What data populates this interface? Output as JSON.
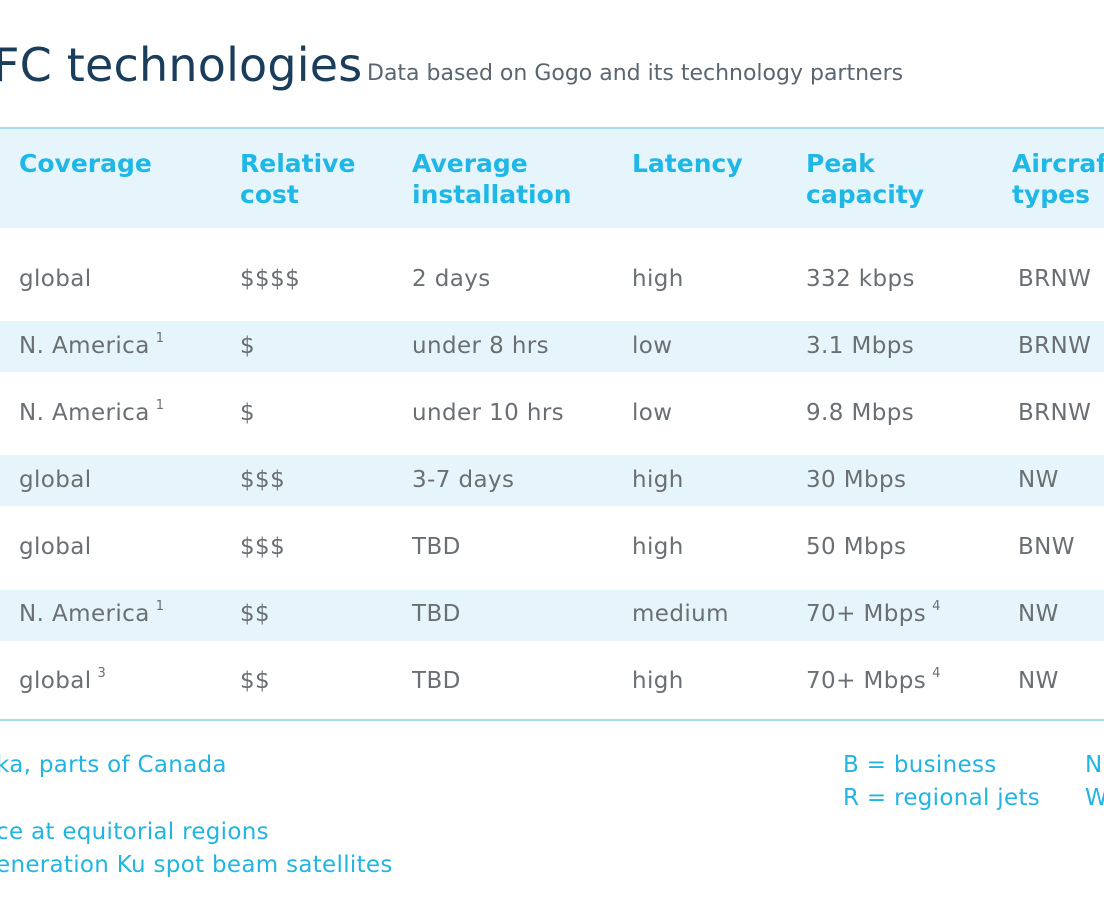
{
  "title": "FC technologies",
  "subtitle": "Data based on Gogo and its technology partners",
  "table": {
    "columns": [
      {
        "line1": "Coverage",
        "line2": ""
      },
      {
        "line1": "Relative",
        "line2": "cost"
      },
      {
        "line1": "Average",
        "line2": "installation"
      },
      {
        "line1": "Latency",
        "line2": ""
      },
      {
        "line1": "Peak",
        "line2": "capacity"
      },
      {
        "line1": "Aircraft",
        "line2": "types"
      }
    ],
    "rows": [
      {
        "coverage": "global",
        "coverage_note": "",
        "cost": "$$$$",
        "installation": "2 days",
        "latency": "high",
        "capacity": "332 kbps",
        "capacity_note": "",
        "aircraft": "BRNW"
      },
      {
        "coverage": "N. America",
        "coverage_note": "1",
        "cost": "$",
        "installation": "under 8 hrs",
        "latency": "low",
        "capacity": "3.1 Mbps",
        "capacity_note": "",
        "aircraft": "BRNW"
      },
      {
        "coverage": "N. America",
        "coverage_note": "1",
        "cost": "$",
        "installation": "under 10 hrs",
        "latency": "low",
        "capacity": "9.8 Mbps",
        "capacity_note": "",
        "aircraft": "BRNW"
      },
      {
        "coverage": "global",
        "coverage_note": "",
        "cost": "$$$",
        "installation": "3-7 days",
        "latency": "high",
        "capacity": "30 Mbps",
        "capacity_note": "",
        "aircraft": "NW"
      },
      {
        "coverage": "global",
        "coverage_note": "",
        "cost": "$$$",
        "installation": "TBD",
        "latency": "high",
        "capacity": "50 Mbps",
        "capacity_note": "",
        "aircraft": "BNW"
      },
      {
        "coverage": "N. America",
        "coverage_note": "1",
        "cost": "$$",
        "installation": "TBD",
        "latency": "medium",
        "capacity": "70+ Mbps",
        "capacity_note": "4",
        "aircraft": "NW"
      },
      {
        "coverage": "global",
        "coverage_note": "3",
        "cost": "$$",
        "installation": "TBD",
        "latency": "high",
        "capacity": "70+ Mbps",
        "capacity_note": "4",
        "aircraft": "NW"
      }
    ]
  },
  "footnotes": {
    "note1": "ka, parts of Canada",
    "note3": "ce at equitorial regions",
    "note4": "eneration Ku spot beam satellites"
  },
  "legend": {
    "b": "B = business",
    "r": "R = regional jets",
    "n": "N",
    "w": "W"
  },
  "colors": {
    "title": "#1b3d5c",
    "accent": "#1fb8e6",
    "band": "#e6f5fb",
    "rule": "#a6dced",
    "body_text": "#6a6f73"
  }
}
